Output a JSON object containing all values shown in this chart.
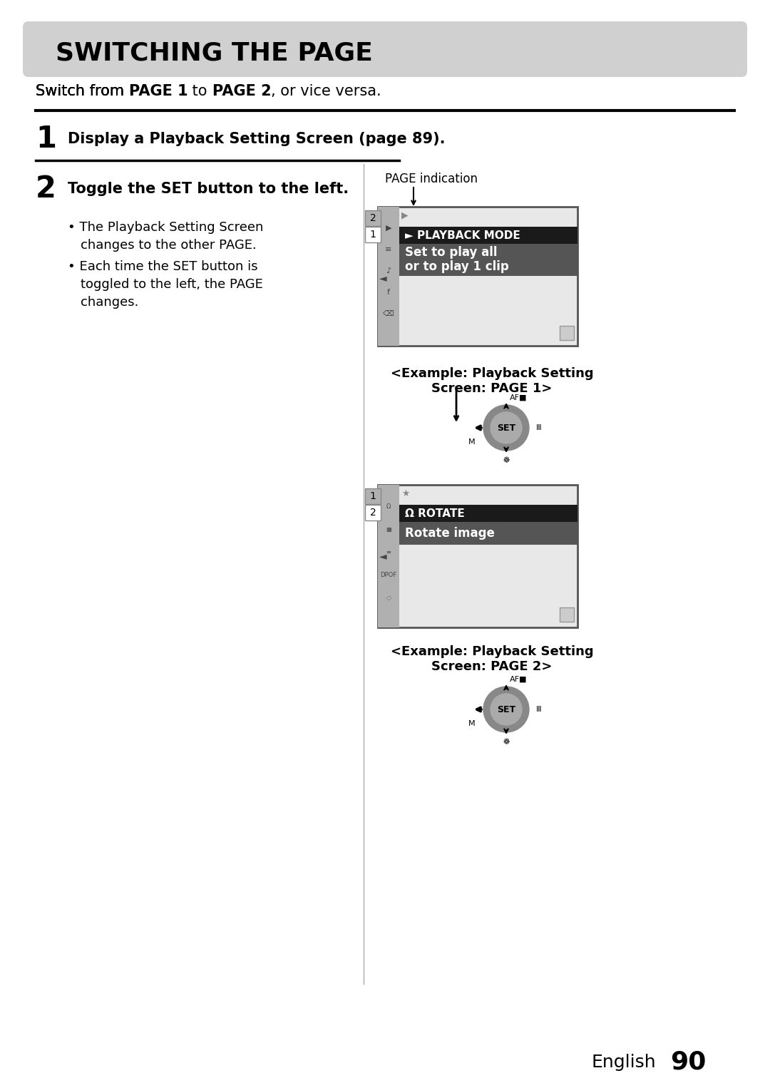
{
  "bg_color": "#ffffff",
  "title_bg": "#d0d0d0",
  "title_text": "SWITCHING THE PAGE",
  "subtitle": "Switch from PAGE 1 to PAGE 2, or vice versa.",
  "step1_num": "1",
  "step1_text": "Display a Playback Setting Screen (page 89).",
  "step2_num": "2",
  "step2_text": "Toggle the SET button to the left.",
  "bullet1": "The Playback Setting Screen\nchanges to the other PAGE.",
  "bullet2": "Each time the SET button is\ntoggled to the left, the PAGE\nchanges.",
  "page_indication": "PAGE indication",
  "example1_label": "<Example: Playback Setting\nScreen: PAGE 1>",
  "example2_label": "<Example: Playback Setting\nScreen: PAGE 2>",
  "playback_mode_text": "PLAYBACK MODE",
  "set_to_play_text": "Set to play all\nor to play 1 clip",
  "rotate_text": "ROTATE",
  "rotate_image_text": "Rotate image",
  "footer_text": "English",
  "footer_num": "90",
  "screen_bg": "#e8e8e8",
  "menu_header_bg": "#1a1a1a",
  "menu_selected_bg": "#606060",
  "menu_text_color": "#ffffff",
  "sidebar_bg": "#c0c0c0"
}
